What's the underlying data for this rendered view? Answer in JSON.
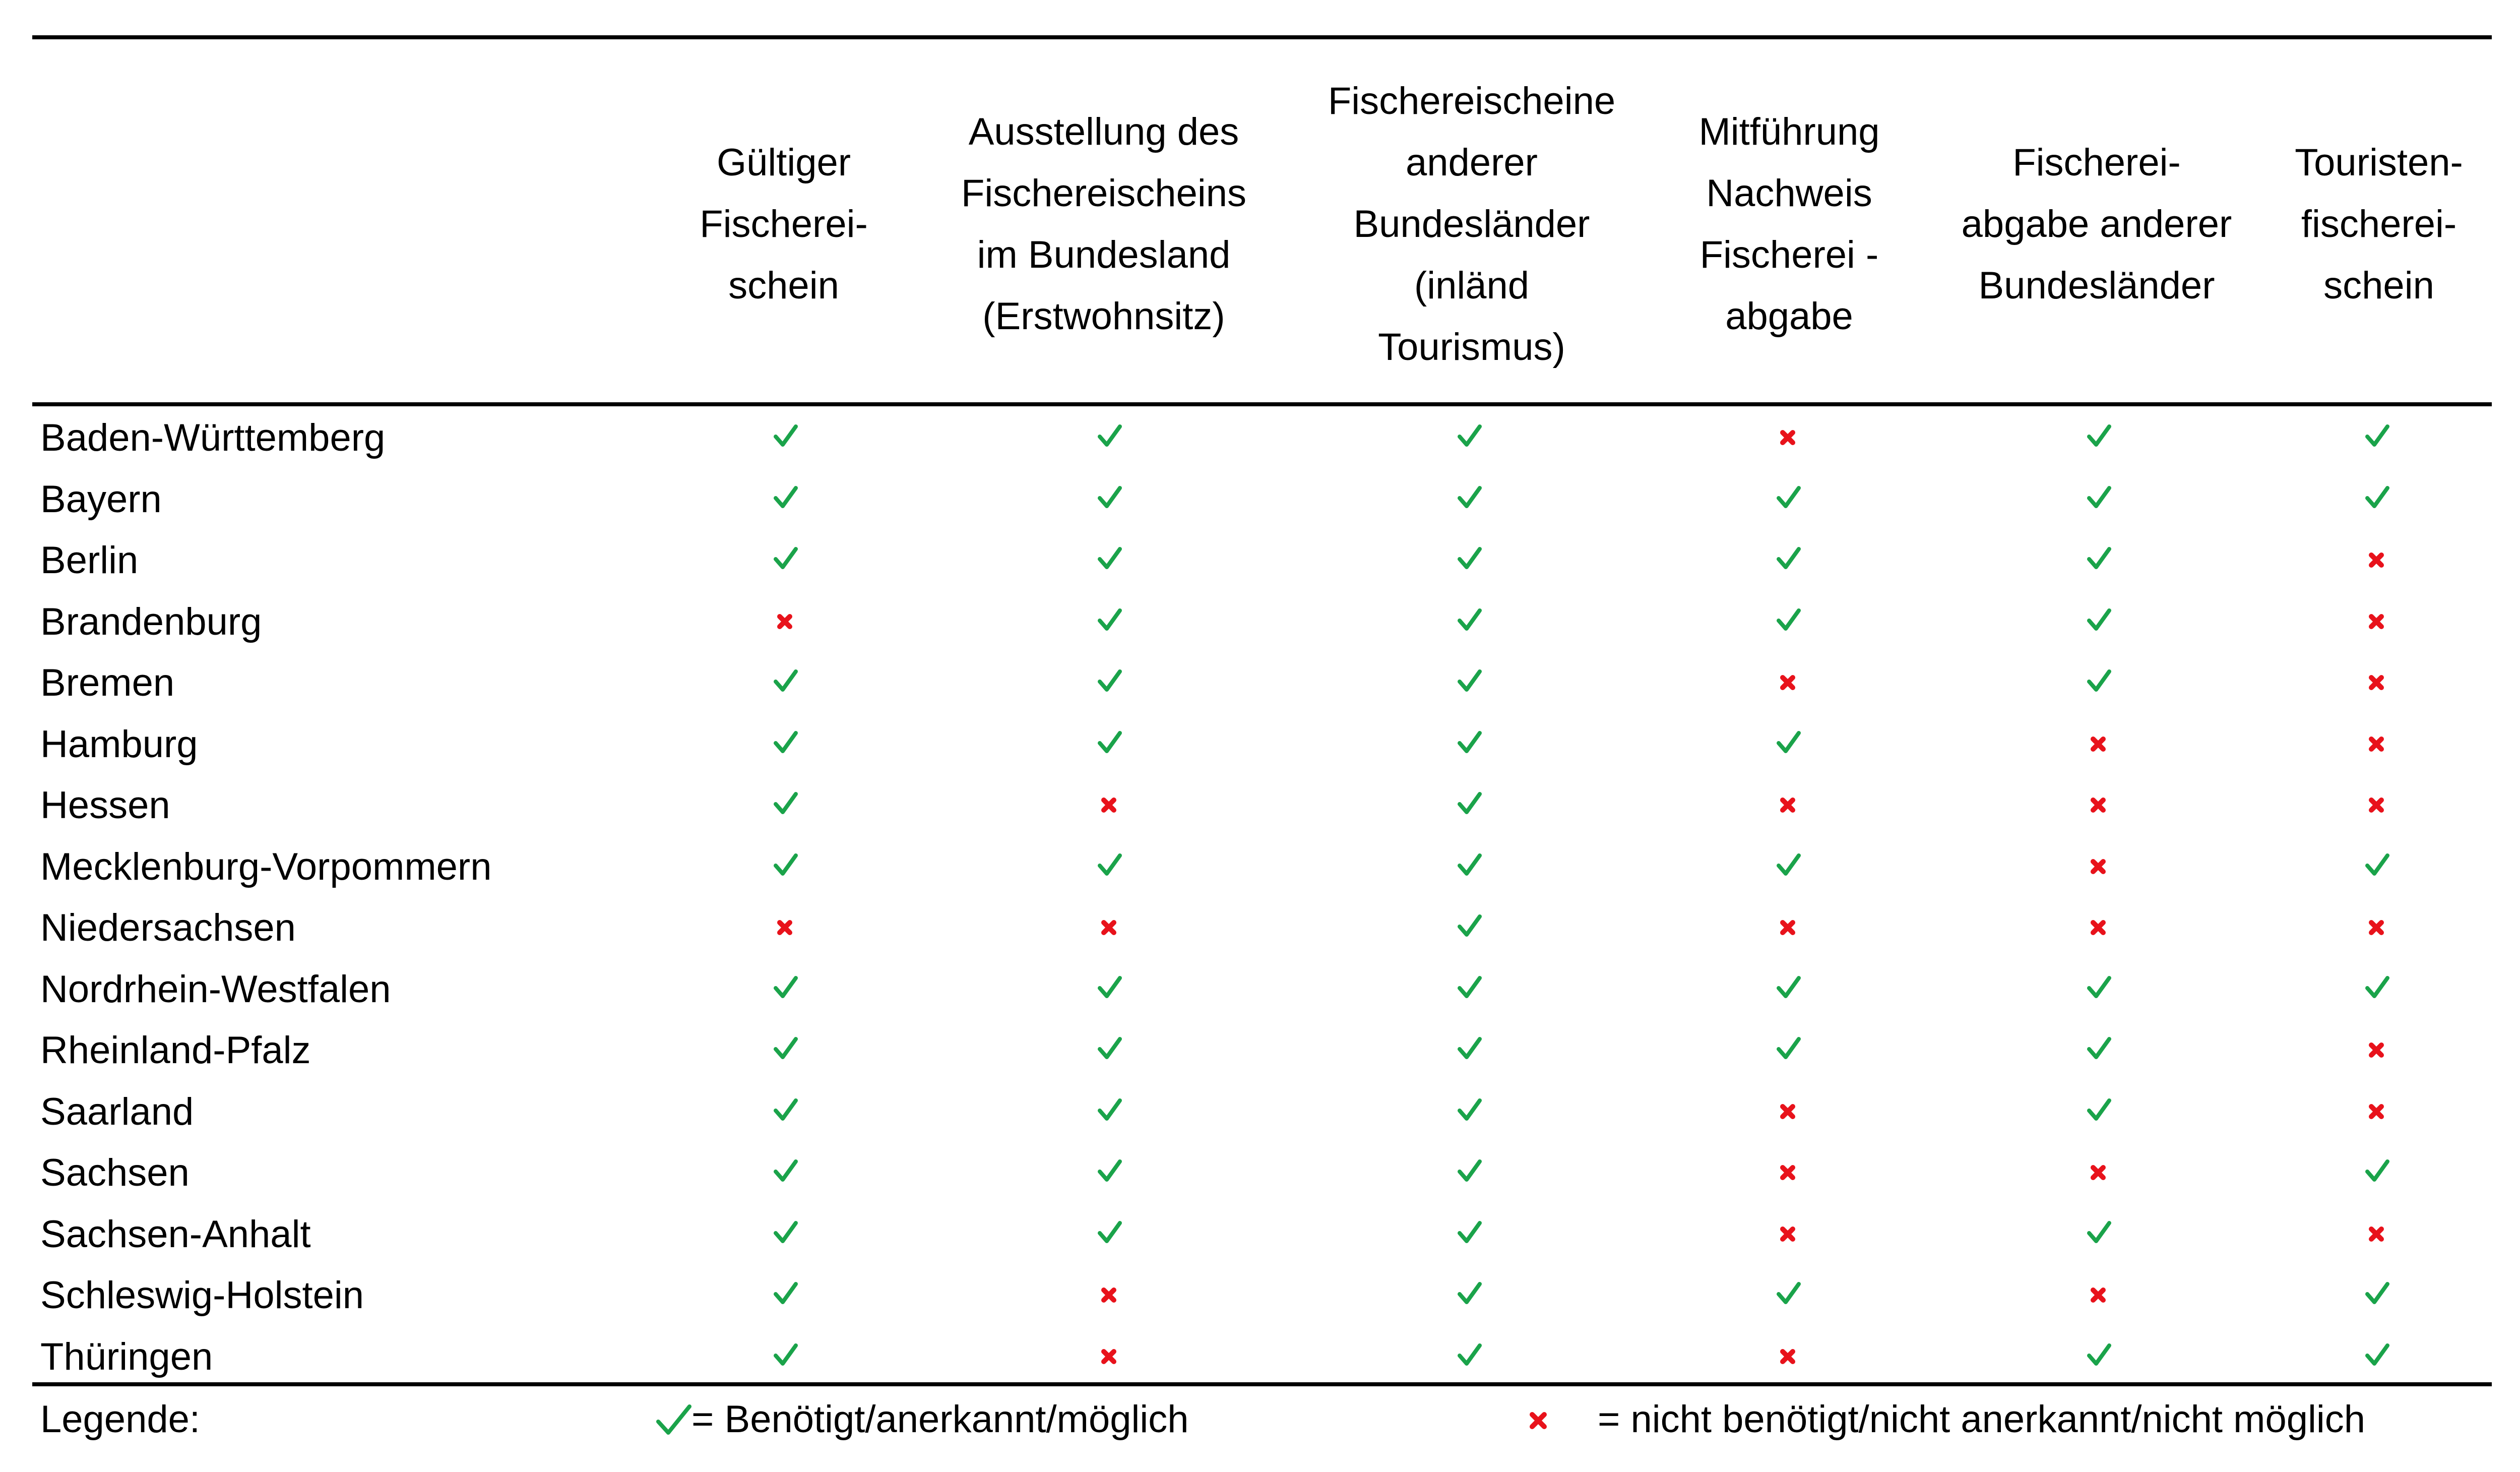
{
  "colors": {
    "yes": "#1aa34a",
    "no": "#e8121b",
    "rule": "#000000"
  },
  "icons": {
    "yes": "check-icon",
    "no": "cross-icon"
  },
  "columns": [
    "Gültiger\nFischerei-\nschein",
    "Ausstellung des\nFischereischeins\nim Bundesland\n(Erstwohnsitz)",
    "Fischereischeine\nanderer\nBundesländer\n(inländ\nTourismus)",
    "Mitführung\nNachweis\nFischerei -\nabgabe",
    "Fischerei-\nabgabe anderer\nBundesländer",
    "Touristen-\nfischerei-\nschein"
  ],
  "rows": [
    {
      "state": "Baden-Württemberg",
      "values": [
        "yes",
        "yes",
        "yes",
        "no",
        "yes",
        "yes"
      ]
    },
    {
      "state": "Bayern",
      "values": [
        "yes",
        "yes",
        "yes",
        "yes",
        "yes",
        "yes"
      ]
    },
    {
      "state": "Berlin",
      "values": [
        "yes",
        "yes",
        "yes",
        "yes",
        "yes",
        "no"
      ]
    },
    {
      "state": "Brandenburg",
      "values": [
        "no",
        "yes",
        "yes",
        "yes",
        "yes",
        "no"
      ]
    },
    {
      "state": "Bremen",
      "values": [
        "yes",
        "yes",
        "yes",
        "no",
        "yes",
        "no"
      ]
    },
    {
      "state": "Hamburg",
      "values": [
        "yes",
        "yes",
        "yes",
        "yes",
        "no",
        "no"
      ]
    },
    {
      "state": "Hessen",
      "values": [
        "yes",
        "no",
        "yes",
        "no",
        "no",
        "no"
      ]
    },
    {
      "state": "Mecklenburg-Vorpommern",
      "values": [
        "yes",
        "yes",
        "yes",
        "yes",
        "no",
        "yes"
      ]
    },
    {
      "state": "Niedersachsen",
      "values": [
        "no",
        "no",
        "yes",
        "no",
        "no",
        "no"
      ]
    },
    {
      "state": "Nordrhein-Westfalen",
      "values": [
        "yes",
        "yes",
        "yes",
        "yes",
        "yes",
        "yes"
      ]
    },
    {
      "state": "Rheinland-Pfalz",
      "values": [
        "yes",
        "yes",
        "yes",
        "yes",
        "yes",
        "no"
      ]
    },
    {
      "state": "Saarland",
      "values": [
        "yes",
        "yes",
        "yes",
        "no",
        "yes",
        "no"
      ]
    },
    {
      "state": "Sachsen",
      "values": [
        "yes",
        "yes",
        "yes",
        "no",
        "no",
        "yes"
      ]
    },
    {
      "state": "Sachsen-Anhalt",
      "values": [
        "yes",
        "yes",
        "yes",
        "no",
        "yes",
        "no"
      ]
    },
    {
      "state": "Schleswig-Holstein",
      "values": [
        "yes",
        "no",
        "yes",
        "yes",
        "no",
        "yes"
      ]
    },
    {
      "state": "Thüringen",
      "values": [
        "yes",
        "no",
        "yes",
        "no",
        "yes",
        "yes"
      ]
    }
  ],
  "legend": {
    "label": "Legende:",
    "yes_text": "= Benötigt/anerkannt/möglich",
    "no_text": "= nicht benötigt/nicht anerkannt/nicht möglich"
  }
}
